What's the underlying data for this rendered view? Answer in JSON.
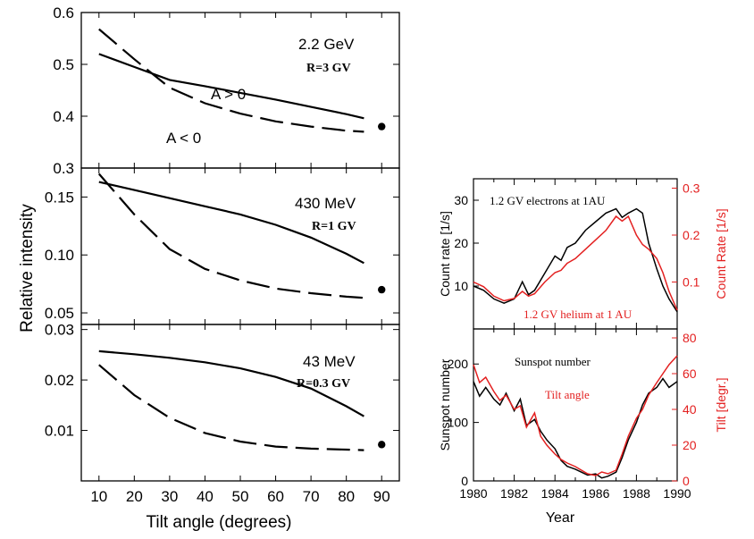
{
  "colors": {
    "black": "#000000",
    "red": "#e32020",
    "grey": "#777777"
  },
  "left_ylabel": "Relative intensity",
  "left_xlabel": "Tilt angle (degrees)",
  "right_xlabel": "Year",
  "chart_data": [
    {
      "type": "line",
      "panel": "left-top",
      "x": [
        10,
        20,
        30,
        40,
        50,
        60,
        70,
        80,
        85
      ],
      "series": [
        {
          "name": "A > 0",
          "style": "solid",
          "values": [
            0.52,
            0.495,
            0.47,
            0.458,
            0.445,
            0.432,
            0.418,
            0.404,
            0.396
          ]
        },
        {
          "name": "A < 0",
          "style": "dashed",
          "values": [
            0.568,
            0.51,
            0.455,
            0.425,
            0.405,
            0.39,
            0.38,
            0.372,
            0.37
          ]
        }
      ],
      "points": [
        {
          "x": 90,
          "y": 0.38
        }
      ],
      "ylim": [
        0.3,
        0.6
      ],
      "yticks": [
        "0.3",
        "0.4",
        "0.5",
        "0.6"
      ],
      "annotations": {
        "energy": "2.2 GeV",
        "rigidity": "R=3 GV",
        "a_pos": "A > 0",
        "a_neg": "A < 0"
      }
    },
    {
      "type": "line",
      "panel": "left-middle",
      "x": [
        10,
        20,
        30,
        40,
        50,
        60,
        70,
        80,
        85
      ],
      "series": [
        {
          "name": "A > 0",
          "style": "solid",
          "values": [
            0.163,
            0.156,
            0.149,
            0.142,
            0.135,
            0.126,
            0.115,
            0.101,
            0.093
          ]
        },
        {
          "name": "A < 0",
          "style": "dashed",
          "values": [
            0.17,
            0.135,
            0.105,
            0.088,
            0.078,
            0.071,
            0.067,
            0.064,
            0.063
          ]
        }
      ],
      "points": [
        {
          "x": 90,
          "y": 0.07
        }
      ],
      "ylim": [
        0.04,
        0.175
      ],
      "yticks": [
        "0.05",
        "0.10",
        "0.15"
      ],
      "annotations": {
        "energy": "430 MeV",
        "rigidity": "R=1 GV"
      }
    },
    {
      "type": "line",
      "panel": "left-bottom",
      "x": [
        10,
        20,
        30,
        40,
        50,
        60,
        70,
        80,
        85
      ],
      "series": [
        {
          "name": "A > 0",
          "style": "solid",
          "values": [
            0.0257,
            0.0251,
            0.0244,
            0.0235,
            0.0223,
            0.0206,
            0.0183,
            0.0148,
            0.0128
          ]
        },
        {
          "name": "A < 0",
          "style": "dashed",
          "values": [
            0.023,
            0.017,
            0.0125,
            0.0095,
            0.0078,
            0.0068,
            0.0064,
            0.0062,
            0.0061
          ]
        }
      ],
      "points": [
        {
          "x": 90,
          "y": 0.0072
        }
      ],
      "ylim": [
        0.0,
        0.031
      ],
      "yticks": [
        "0.01",
        "0.02",
        "0.03"
      ],
      "xlim": [
        5,
        95
      ],
      "xticks": [
        "10",
        "20",
        "30",
        "40",
        "50",
        "60",
        "70",
        "80",
        "90"
      ],
      "annotations": {
        "energy": "43 MeV",
        "rigidity": "R=0.3 GV"
      }
    },
    {
      "type": "line",
      "panel": "right-top",
      "x": [
        1980,
        1980.5,
        1981,
        1981.5,
        1982,
        1982.4,
        1982.7,
        1983,
        1983.5,
        1984,
        1984.3,
        1984.6,
        1985,
        1985.5,
        1986,
        1986.5,
        1987,
        1987.3,
        1987.6,
        1988,
        1988.3,
        1988.6,
        1989,
        1989.3,
        1989.6,
        1990
      ],
      "series": [
        {
          "name": "1.2 GV electrons at 1AU",
          "axis": "left",
          "color": "#000000",
          "values": [
            10,
            9,
            7,
            6,
            7,
            11,
            8,
            9,
            13,
            17,
            16,
            19,
            20,
            23,
            25,
            27,
            28,
            26,
            27,
            28,
            27,
            20,
            14,
            10,
            7,
            4
          ]
        },
        {
          "name": "1.2 GV helium at 1 AU",
          "axis": "right",
          "color": "#e32020",
          "values": [
            0.1,
            0.09,
            0.07,
            0.06,
            0.065,
            0.08,
            0.07,
            0.075,
            0.1,
            0.12,
            0.125,
            0.14,
            0.15,
            0.17,
            0.19,
            0.21,
            0.24,
            0.23,
            0.24,
            0.2,
            0.18,
            0.17,
            0.15,
            0.12,
            0.08,
            0.04
          ]
        }
      ],
      "ylim": [
        0,
        35
      ],
      "yticks": [
        "10",
        "20",
        "30"
      ],
      "ylabel": "Count rate [1/s]",
      "y2lim": [
        0,
        0.32
      ],
      "y2ticks": [
        "0.1",
        "0.2",
        "0.3"
      ],
      "y2label": "Count Rate [1/s]"
    },
    {
      "type": "line",
      "panel": "right-bottom",
      "x": [
        1980,
        1980.3,
        1980.6,
        1981,
        1981.3,
        1981.6,
        1982,
        1982.3,
        1982.6,
        1983,
        1983.3,
        1983.6,
        1984,
        1984.3,
        1984.6,
        1985,
        1985.3,
        1985.6,
        1986,
        1986.3,
        1986.6,
        1987,
        1987.3,
        1987.6,
        1988,
        1988.3,
        1988.6,
        1989,
        1989.3,
        1989.6,
        1990
      ],
      "series": [
        {
          "name": "Sunspot number",
          "axis": "left",
          "color": "#000000",
          "values": [
            170,
            145,
            160,
            140,
            130,
            150,
            120,
            140,
            95,
            105,
            85,
            70,
            55,
            35,
            25,
            20,
            15,
            10,
            12,
            5,
            8,
            15,
            40,
            70,
            100,
            130,
            150,
            160,
            175,
            160,
            170
          ]
        },
        {
          "name": "Tilt angle",
          "axis": "right",
          "color": "#e32020",
          "values": [
            65,
            55,
            58,
            50,
            45,
            48,
            40,
            42,
            30,
            38,
            25,
            20,
            15,
            12,
            10,
            8,
            6,
            4,
            3,
            5,
            4,
            6,
            15,
            25,
            35,
            40,
            48,
            55,
            60,
            65,
            70
          ]
        }
      ],
      "ylim": [
        0,
        260
      ],
      "yticks": [
        "0",
        "100",
        "200"
      ],
      "ylabel": "Sunspot number",
      "y2lim": [
        0,
        85
      ],
      "y2ticks": [
        "0",
        "20",
        "40",
        "60",
        "80"
      ],
      "y2label": "Tilt [degr.]",
      "xlim": [
        1980,
        1990
      ],
      "xticks": [
        "1980",
        "1982",
        "1984",
        "1986",
        "1988",
        "1990"
      ],
      "xlabel": "Year"
    }
  ]
}
